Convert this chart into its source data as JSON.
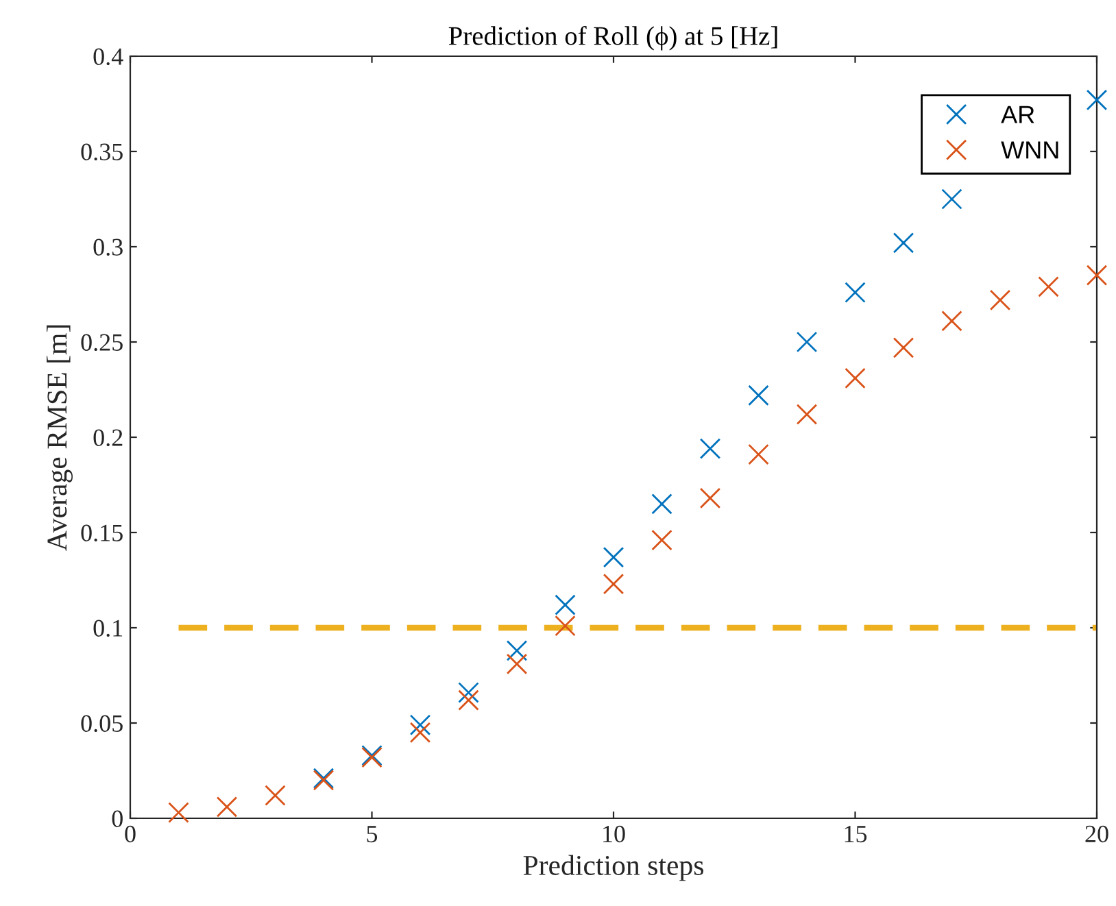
{
  "chart_data": {
    "type": "scatter",
    "title": "Prediction of Roll (ϕ) at 5 [Hz]",
    "xlabel": "Prediction steps",
    "ylabel": "Average RMSE [m]",
    "x": [
      1,
      2,
      3,
      4,
      5,
      6,
      7,
      8,
      9,
      10,
      11,
      12,
      13,
      14,
      15,
      16,
      17,
      18,
      19,
      20
    ],
    "series": [
      {
        "name": "AR",
        "color": "#0072bd",
        "values": [
          null,
          null,
          null,
          0.021,
          0.033,
          0.049,
          0.066,
          0.088,
          0.112,
          0.137,
          0.165,
          0.194,
          0.222,
          0.25,
          0.276,
          0.302,
          0.325,
          null,
          null,
          0.377
        ]
      },
      {
        "name": "WNN",
        "color": "#d95319",
        "values": [
          0.003,
          0.006,
          0.012,
          0.02,
          0.032,
          0.045,
          0.062,
          0.081,
          0.101,
          0.123,
          0.146,
          0.168,
          0.191,
          0.212,
          0.231,
          0.247,
          0.261,
          0.272,
          0.279,
          0.285
        ]
      }
    ],
    "ref_lines": [
      {
        "axis": "y",
        "value": 0.1,
        "color": "#edb120",
        "line_style": "dashed"
      }
    ],
    "xlim": [
      0,
      20
    ],
    "xticks": [
      0,
      5,
      10,
      15,
      20
    ],
    "ylim": [
      0,
      0.4
    ],
    "yticks": [
      0,
      0.05,
      0.1,
      0.15,
      0.2,
      0.25,
      0.3,
      0.35,
      0.4
    ],
    "marker": "cross",
    "legend": "top right",
    "grid": false
  }
}
